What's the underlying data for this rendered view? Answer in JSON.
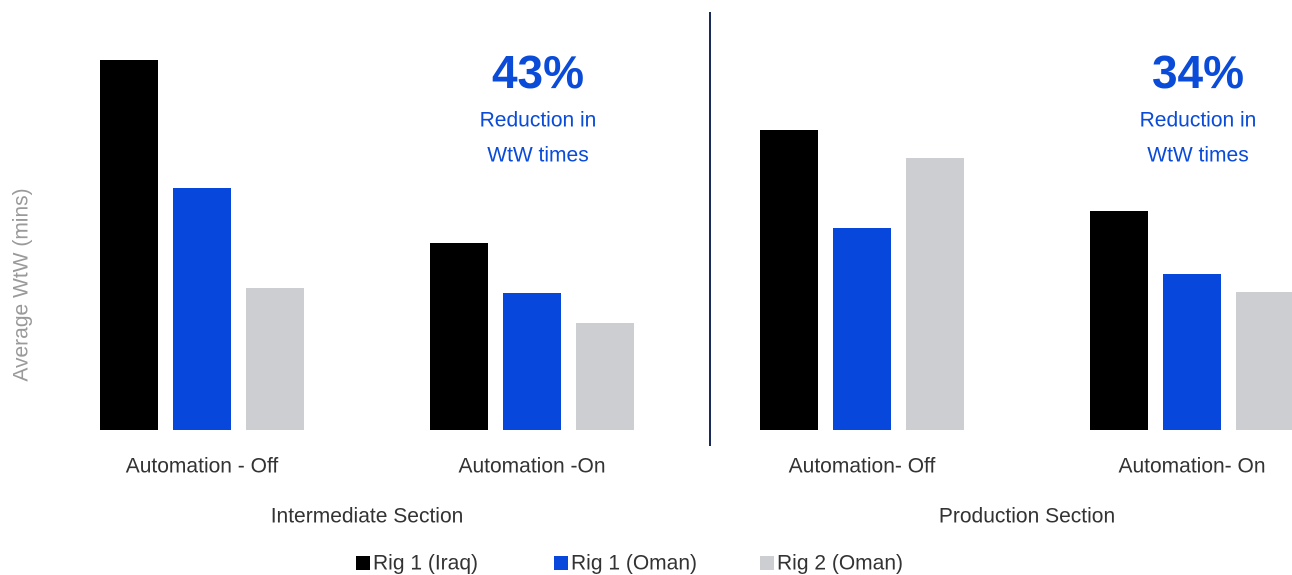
{
  "chart_data": {
    "type": "bar",
    "y_label": "Average WtW (mins)",
    "categories": [
      "Automation - Off",
      "Automation -On",
      "Automation- Off",
      "Automation- On"
    ],
    "groups": [
      "Intermediate Section",
      "Production Section"
    ],
    "series": [
      {
        "name": "Rig 1 (Iraq)",
        "color": "#000000",
        "values": [
          370,
          187,
          300,
          219
        ]
      },
      {
        "name": "Rig 1 (Oman)",
        "color": "#0747dc",
        "values": [
          242,
          137,
          202,
          156
        ]
      },
      {
        "name": "Rig 2 (Oman)",
        "color": "#cdced2",
        "values": [
          142,
          107,
          272,
          138
        ]
      }
    ],
    "ylim": [
      0,
      370
    ],
    "annotations": [
      {
        "text": "43%",
        "lines": [
          "Reduction in",
          "WtW times"
        ],
        "color": "#0a4bd8"
      },
      {
        "text": "34%",
        "lines": [
          "Reduction in",
          "WtW times"
        ],
        "color": "#0a4bd8"
      }
    ],
    "legend": "bottom"
  }
}
